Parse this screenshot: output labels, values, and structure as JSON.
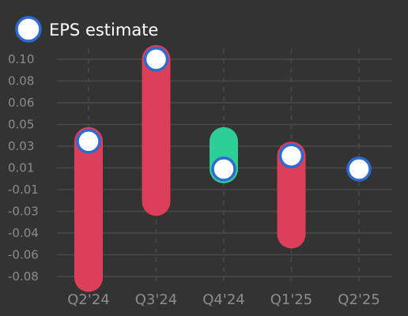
{
  "chart_data": {
    "type": "bar",
    "subtype": "range-bar-with-estimate-markers",
    "categories": [
      "Q2'24",
      "Q3'24",
      "Q4'24",
      "Q1'25",
      "Q2'25"
    ],
    "series": [
      {
        "name": "EPS estimate",
        "values": [
          0.032,
          0.1,
          0.009,
          0.02,
          0.009
        ]
      }
    ],
    "actual": [
      -0.081,
      null,
      0.032,
      null,
      null
    ],
    "bars": [
      {
        "from": 0.032,
        "to": -0.081,
        "color": "#dc3f58"
      },
      {
        "from": 0.1,
        "to": -0.018,
        "color": "#dc3f58"
      },
      {
        "from": 0.009,
        "to": 0.032,
        "color": "#2dcf97"
      },
      {
        "from": 0.02,
        "to": -0.045,
        "color": "#dc3f58"
      },
      {
        "from": null,
        "to": null,
        "color": null
      }
    ],
    "y_ticks": [
      "0.10",
      "0.08",
      "0.06",
      "0.05",
      "0.03",
      "0.01",
      "-0.01",
      "-0.03",
      "-0.04",
      "-0.06",
      "-0.08"
    ],
    "y_tick_values": [
      0.1,
      0.08,
      0.06,
      0.05,
      0.03,
      0.01,
      -0.01,
      -0.03,
      -0.04,
      -0.06,
      -0.08
    ],
    "ylim": [
      -0.088,
      0.1
    ],
    "grid": true,
    "legend": {
      "position": "top-left",
      "label": "EPS estimate"
    },
    "colors": {
      "background": "#333333",
      "grid": "#4a4a4a",
      "estimate_fill": "#ffffff",
      "estimate_stroke": "#2d6bd0",
      "miss": "#dc3f58",
      "beat": "#2dcf97",
      "tick": "#8c8c8c"
    }
  }
}
